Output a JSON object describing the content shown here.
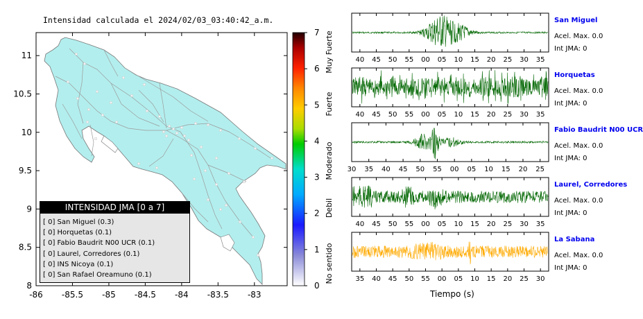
{
  "map": {
    "title": "Intensidad calculada el 2024/02/03_03:40:42_a.m.",
    "x_ticks": [
      "-86",
      "-85.5",
      "-85",
      "-84.5",
      "-84",
      "-83.5",
      "-83"
    ],
    "y_ticks": [
      "11",
      "10.5",
      "10",
      "9.5",
      "9",
      "8.5",
      "8"
    ],
    "land_color": "#b3eeee",
    "legend": {
      "title": "INTENSIDAD JMA [0 a 7]",
      "items": [
        "[ 0]  San Miguel (0.3)",
        "[ 0]  Horquetas (0.1)",
        "[ 0]  Fabio Baudrit N00 UCR (0.1)",
        "[ 0]  Laurel, Corredores (0.1)",
        "[ 0]  INS Nicoya (0.1)",
        "[ 0]  San Rafael Oreamuno (0.1)"
      ]
    }
  },
  "colorbar": {
    "ticks": [
      "7",
      "6",
      "5",
      "4",
      "3",
      "2",
      "1",
      "0"
    ],
    "labels": [
      "Muy Fuerte",
      "Fuerte",
      "Moderado",
      "Debil",
      "No sentido"
    ]
  },
  "traces": {
    "xlabel": "Tiempo (s)",
    "accel_label": "Acel. Max. 0.0",
    "jma_label": "Int JMA: 0",
    "stations": [
      {
        "name": "San Miguel",
        "color": "#006600",
        "ticks": [
          "40",
          "45",
          "50",
          "55",
          "00",
          "05",
          "10",
          "15",
          "20",
          "25",
          "30",
          "35"
        ]
      },
      {
        "name": "Horquetas",
        "color": "#006600",
        "ticks": [
          "40",
          "45",
          "50",
          "55",
          "00",
          "05",
          "10",
          "15",
          "20",
          "25",
          "30",
          "35"
        ]
      },
      {
        "name": "Fabio Baudrit N00 UCR",
        "color": "#006600",
        "ticks": [
          "30",
          "35",
          "40",
          "45",
          "50",
          "55",
          "00",
          "05",
          "10",
          "15",
          "20",
          "25"
        ]
      },
      {
        "name": "Laurel, Corredores",
        "color": "#006600",
        "ticks": [
          "40",
          "45",
          "50",
          "55",
          "00",
          "05",
          "10",
          "15",
          "20",
          "25",
          "30",
          "35"
        ]
      },
      {
        "name": "La Sabana",
        "color": "#ffaa00",
        "ticks": [
          "35",
          "40",
          "45",
          "50",
          "55",
          "00",
          "05",
          "10",
          "15",
          "20",
          "25",
          "30"
        ]
      }
    ]
  }
}
